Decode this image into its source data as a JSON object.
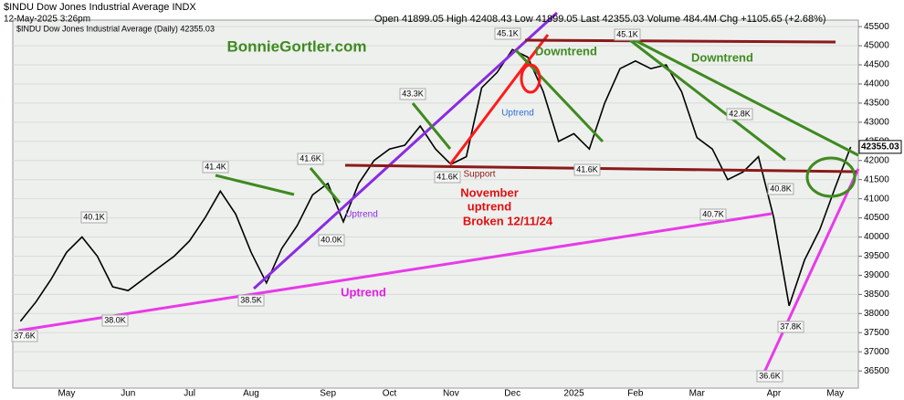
{
  "chart_data": {
    "type": "line",
    "title": "$INDU Dow Jones Industrial Average INDX",
    "subtitle": "12-May-2025 3:26pm",
    "quote": "Open 41899.05 High 42408.43 Low 41899.05 Last 42355.03 Volume 484.4M Chg +1105.65 (+2.68%)",
    "legend_text": "$INDU Dow Jones Industrial Average (Daily) 42355.03",
    "last_price_label": "42355.03",
    "categories": [
      null,
      null,
      null,
      "May",
      null,
      null,
      null,
      "Jun",
      null,
      null,
      null,
      "Jul",
      null,
      null,
      null,
      "Aug",
      null,
      null,
      null,
      null,
      "Sep",
      null,
      null,
      null,
      "Oct",
      null,
      null,
      null,
      "Nov",
      null,
      null,
      null,
      "Dec",
      null,
      null,
      null,
      "2025",
      null,
      null,
      null,
      "Feb",
      null,
      null,
      null,
      "Mar",
      null,
      null,
      null,
      null,
      "Apr",
      null,
      null,
      null,
      "May",
      null
    ],
    "series": [
      {
        "name": "$INDU",
        "color": "#000000",
        "values": [
          37800,
          38300,
          38900,
          39600,
          40000,
          39500,
          38700,
          38600,
          38900,
          39200,
          39500,
          39900,
          40500,
          41200,
          40600,
          39600,
          38800,
          39700,
          40300,
          41100,
          41400,
          40400,
          41400,
          42000,
          42300,
          42400,
          42900,
          42300,
          41900,
          42100,
          43900,
          44300,
          44900,
          44700,
          43800,
          42500,
          42700,
          42300,
          43500,
          44400,
          44600,
          44400,
          44500,
          43800,
          42600,
          42300,
          41500,
          41700,
          42100,
          40500,
          38200,
          39400,
          40200,
          41300,
          42355.03
        ]
      }
    ],
    "ylim": [
      36050,
      45670
    ],
    "yticks": [
      36500,
      37000,
      37500,
      38000,
      38500,
      39000,
      39500,
      40000,
      40500,
      41000,
      41500,
      42000,
      42500,
      43000,
      43500,
      44000,
      44500,
      45000,
      45500
    ],
    "grid": true,
    "point_labels": [
      "37.6K",
      "40.1K",
      "38.0K",
      "41.4K",
      "38.5K",
      "41.6K",
      "40.0K",
      "43.3K",
      "41.6K",
      "45.1K",
      "41.6K",
      "45.1K",
      "40.7K",
      "42.8K",
      "40.8K",
      "36.6K",
      "37.8K"
    ],
    "annotations": [
      "BonnieGortler.com",
      "Downtrend",
      "Downtrend",
      "Uptrend",
      "Uptrend",
      "Uptrend",
      "Support",
      "November",
      "uptrend",
      "Broken 12/11/24"
    ]
  }
}
